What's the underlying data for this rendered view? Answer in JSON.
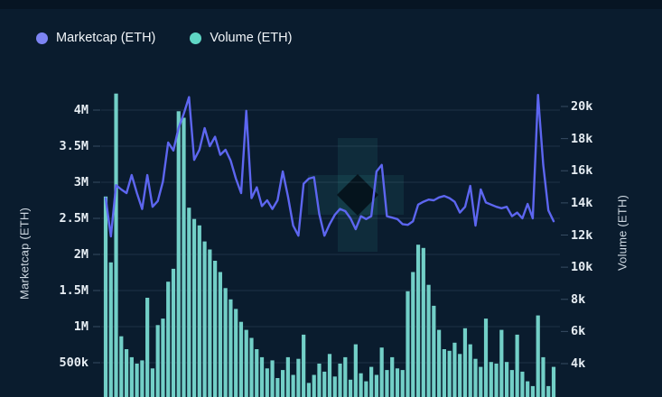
{
  "page": {
    "background": "#0a1c2e",
    "top_strip_color": "#071523",
    "grid_color": "rgba(140,170,195,0.16)",
    "tick_mark_color": "rgba(140,170,195,0.35)"
  },
  "legend": {
    "items": [
      {
        "label": "Marketcap (ETH)",
        "color": "#7d84f3"
      },
      {
        "label": "Volume (ETH)",
        "color": "#5fd6c5"
      }
    ]
  },
  "axes": {
    "left": {
      "title": "Marketcap (ETH)",
      "tick_labels": [
        "4M",
        "3.5M",
        "3M",
        "2.5M",
        "2M",
        "1.5M",
        "1M",
        "500k"
      ]
    },
    "right": {
      "title": "Volume (ETH)",
      "tick_labels": [
        "20k",
        "18k",
        "16k",
        "14k",
        "12k",
        "10k",
        "8k",
        "6k",
        "4k"
      ]
    }
  },
  "watermark": {
    "shape": "plus-with-diamond-hole",
    "color": "rgba(70,210,200,0.09)",
    "hole_color": "rgba(3,14,22,0.85)"
  },
  "chart_data": {
    "type": "mixed-line-bar",
    "title": "",
    "xlabel": "",
    "x_count": 87,
    "grid": "horizontal only",
    "legend_position": "top-left",
    "left_axis": {
      "label": "Marketcap (ETH)",
      "unit": "ETH (millions)",
      "top_tick": 4.0,
      "bottom_tick": 0.5,
      "tick_step": 0.5
    },
    "right_axis": {
      "label": "Volume (ETH)",
      "unit": "ETH (thousands)",
      "top_tick": 20,
      "bottom_tick": 4,
      "tick_step": 2
    },
    "series": [
      {
        "name": "Marketcap (ETH)",
        "type": "line",
        "axis": "left",
        "color": "#5d66f0",
        "values_M": [
          2.78,
          2.25,
          2.96,
          2.9,
          2.85,
          3.1,
          2.85,
          2.63,
          3.1,
          2.66,
          2.74,
          3.01,
          3.55,
          3.44,
          3.75,
          3.95,
          4.18,
          3.31,
          3.45,
          3.75,
          3.5,
          3.63,
          3.38,
          3.45,
          3.3,
          3.05,
          2.85,
          3.99,
          2.78,
          2.93,
          2.67,
          2.75,
          2.63,
          2.75,
          3.15,
          2.8,
          2.4,
          2.26,
          2.98,
          3.05,
          3.07,
          2.56,
          2.26,
          2.42,
          2.55,
          2.63,
          2.6,
          2.5,
          2.35,
          2.53,
          2.49,
          2.53,
          3.15,
          3.24,
          2.53,
          2.51,
          2.49,
          2.42,
          2.41,
          2.46,
          2.69,
          2.73,
          2.76,
          2.75,
          2.79,
          2.81,
          2.78,
          2.73,
          2.58,
          2.66,
          2.95,
          2.4,
          2.9,
          2.72,
          2.69,
          2.66,
          2.64,
          2.66,
          2.53,
          2.58,
          2.5,
          2.7,
          2.5,
          4.21,
          3.24,
          2.61,
          2.46
        ]
      },
      {
        "name": "Volume (ETH)",
        "type": "bar",
        "axis": "right",
        "color": "#72cfc7",
        "values_k": [
          14.4,
          10.3,
          20.8,
          5.7,
          4.9,
          4.4,
          4.0,
          4.2,
          8.1,
          3.7,
          6.4,
          6.8,
          9.1,
          9.9,
          19.7,
          19.3,
          13.7,
          13.0,
          12.6,
          11.6,
          11.1,
          10.4,
          9.7,
          8.7,
          8.0,
          7.4,
          6.6,
          6.1,
          5.6,
          4.9,
          4.4,
          3.7,
          4.2,
          3.1,
          3.6,
          4.4,
          3.3,
          4.3,
          5.8,
          2.8,
          3.3,
          4.0,
          3.5,
          4.6,
          3.2,
          4.0,
          4.4,
          3.0,
          5.2,
          3.4,
          2.9,
          3.8,
          3.3,
          5.0,
          3.6,
          4.4,
          3.7,
          3.6,
          8.5,
          9.7,
          11.4,
          11.2,
          8.9,
          7.6,
          6.1,
          4.9,
          4.8,
          5.3,
          4.6,
          6.2,
          5.2,
          4.3,
          3.8,
          6.8,
          4.1,
          4.0,
          6.1,
          4.1,
          3.6,
          5.8,
          3.5,
          2.9,
          2.6,
          7.0,
          4.4,
          2.6,
          3.8
        ]
      }
    ]
  }
}
